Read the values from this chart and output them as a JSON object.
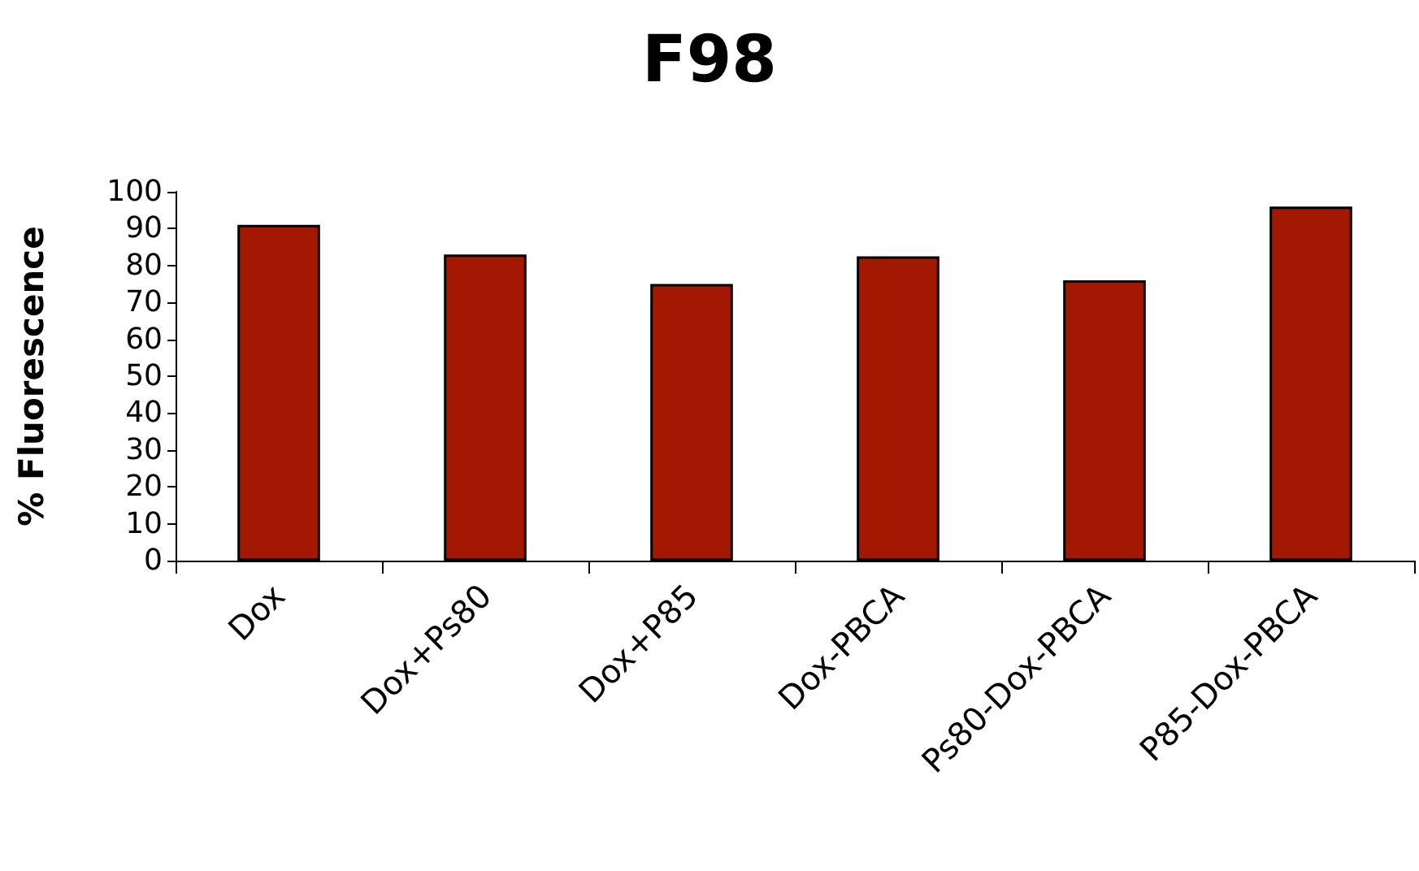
{
  "chart_data": {
    "type": "bar",
    "title": "F98",
    "ylabel": "% Fluorescence",
    "categories": [
      "Dox",
      "Dox+Ps80",
      "Dox+P85",
      "Dox-PBCA",
      "Ps80-Dox-PBCA",
      "P85-Dox-PBCA"
    ],
    "values": [
      91,
      83,
      75,
      82.5,
      76,
      96
    ],
    "color": "#a21800",
    "ylim": [
      0,
      100
    ],
    "yticks": [
      0,
      10,
      20,
      30,
      40,
      50,
      60,
      70,
      80,
      90,
      100
    ],
    "grid": false
  }
}
